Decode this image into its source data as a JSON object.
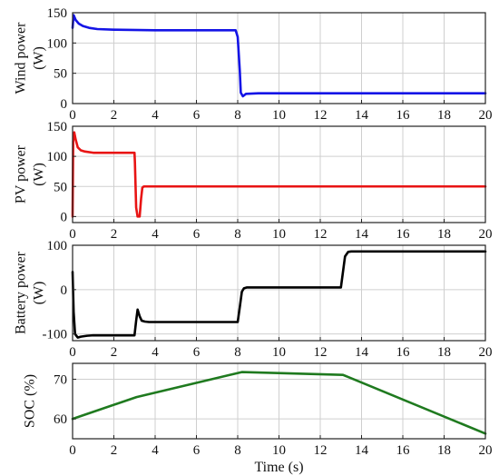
{
  "chart_data": [
    {
      "type": "line",
      "ylabel_lines": [
        "Wind power",
        "(W)"
      ],
      "xlim": [
        0,
        20
      ],
      "ylim": [
        0,
        150
      ],
      "xticks": [
        0,
        2,
        4,
        6,
        8,
        10,
        12,
        14,
        16,
        18,
        20
      ],
      "yticks": [
        0,
        50,
        100,
        150
      ],
      "grid": true,
      "series": [
        {
          "color": "#1414e6",
          "x": [
            0,
            0.05,
            0.15,
            0.3,
            0.5,
            0.8,
            1.2,
            2,
            4,
            6,
            7.9,
            8.0,
            8.1,
            8.15,
            8.25,
            8.4,
            9,
            12,
            16,
            20
          ],
          "y": [
            125,
            146,
            138,
            132,
            128,
            125,
            123,
            122,
            121,
            121,
            121,
            110,
            55,
            18,
            12,
            16,
            17,
            17,
            17,
            17
          ]
        }
      ]
    },
    {
      "type": "line",
      "ylabel_lines": [
        "PV power",
        "(W)"
      ],
      "xlim": [
        0,
        20
      ],
      "ylim": [
        -10,
        150
      ],
      "xticks": [
        0,
        2,
        4,
        6,
        8,
        10,
        12,
        14,
        16,
        18,
        20
      ],
      "yticks": [
        0,
        50,
        100,
        150
      ],
      "grid": true,
      "series": [
        {
          "color": "#e81414",
          "x": [
            0,
            0.03,
            0.08,
            0.15,
            0.25,
            0.4,
            0.6,
            1,
            2,
            3.0,
            3.02,
            3.08,
            3.15,
            3.25,
            3.32,
            3.38,
            3.45,
            4,
            8,
            12,
            16,
            20
          ],
          "y": [
            0,
            125,
            140,
            128,
            115,
            110,
            108,
            106,
            106,
            106,
            90,
            15,
            0,
            0,
            30,
            48,
            50,
            50,
            50,
            50,
            50,
            50
          ]
        }
      ]
    },
    {
      "type": "line",
      "ylabel_lines": [
        "Battery power",
        "(W)"
      ],
      "xlim": [
        0,
        20
      ],
      "ylim": [
        -115,
        100
      ],
      "xticks": [
        0,
        2,
        4,
        6,
        8,
        10,
        12,
        14,
        16,
        18,
        20
      ],
      "yticks": [
        -100,
        0,
        100
      ],
      "grid": true,
      "series": [
        {
          "color": "#000000",
          "x": [
            0,
            0.05,
            0.12,
            0.25,
            0.4,
            0.7,
            1,
            2,
            3.0,
            3.08,
            3.15,
            3.25,
            3.35,
            3.5,
            3.7,
            4.5,
            6,
            8.0,
            8.1,
            8.2,
            8.3,
            8.45,
            9,
            11,
            13.0,
            13.1,
            13.2,
            13.35,
            13.5,
            14,
            16,
            20
          ],
          "y": [
            40,
            -50,
            -100,
            -108,
            -106,
            -104,
            -103,
            -103,
            -103,
            -70,
            -45,
            -60,
            -70,
            -72,
            -73,
            -73,
            -73,
            -73,
            -40,
            -5,
            3,
            5,
            5,
            5,
            5,
            40,
            75,
            85,
            86,
            86,
            86,
            86
          ]
        }
      ]
    },
    {
      "type": "line",
      "ylabel_lines": [
        "SOC (%)"
      ],
      "xlabel": "Time (s)",
      "xlim": [
        0,
        20
      ],
      "ylim": [
        55,
        74
      ],
      "xticks": [
        0,
        2,
        4,
        6,
        8,
        10,
        12,
        14,
        16,
        18,
        20
      ],
      "yticks": [
        60,
        70
      ],
      "grid": true,
      "series": [
        {
          "color": "#1f7a1f",
          "x": [
            0,
            3.1,
            8.2,
            13.1,
            20
          ],
          "y": [
            60.0,
            65.5,
            71.8,
            71.1,
            56.3
          ]
        }
      ]
    }
  ]
}
